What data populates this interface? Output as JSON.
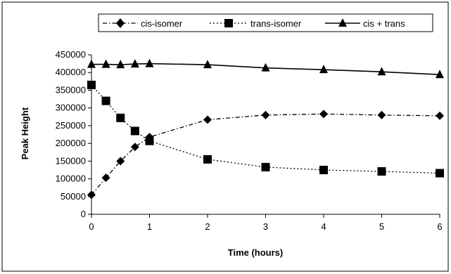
{
  "chart_data": {
    "type": "line",
    "title": "",
    "xlabel": "Time (hours)",
    "ylabel": "Peak Height",
    "xlim": [
      0,
      6
    ],
    "ylim": [
      0,
      450000
    ],
    "x_ticks": [
      0,
      1,
      2,
      3,
      4,
      5,
      6
    ],
    "y_ticks": [
      0,
      50000,
      100000,
      150000,
      200000,
      250000,
      300000,
      350000,
      400000,
      450000
    ],
    "grid": false,
    "legend_position": "top",
    "series": [
      {
        "name": "cis-isomer",
        "marker": "diamond",
        "line_style": "dash-dot",
        "color": "#000000",
        "points": [
          [
            0,
            55000
          ],
          [
            0.25,
            103000
          ],
          [
            0.5,
            150000
          ],
          [
            0.75,
            190000
          ],
          [
            1,
            218000
          ],
          [
            2,
            267000
          ],
          [
            3,
            280000
          ],
          [
            4,
            283000
          ],
          [
            5,
            280000
          ],
          [
            6,
            278000
          ]
        ]
      },
      {
        "name": "trans-isomer",
        "marker": "square",
        "line_style": "dotted",
        "color": "#000000",
        "points": [
          [
            0,
            365000
          ],
          [
            0.25,
            320000
          ],
          [
            0.5,
            272000
          ],
          [
            0.75,
            235000
          ],
          [
            1,
            207000
          ],
          [
            2,
            155000
          ],
          [
            3,
            133000
          ],
          [
            4,
            125000
          ],
          [
            5,
            121000
          ],
          [
            6,
            116000
          ]
        ]
      },
      {
        "name": "cis + trans",
        "marker": "triangle",
        "line_style": "solid",
        "color": "#000000",
        "points": [
          [
            0,
            423000
          ],
          [
            0.25,
            423000
          ],
          [
            0.5,
            422000
          ],
          [
            0.75,
            424000
          ],
          [
            1,
            425000
          ],
          [
            2,
            422000
          ],
          [
            3,
            413000
          ],
          [
            4,
            408000
          ],
          [
            5,
            402000
          ],
          [
            6,
            394000
          ]
        ]
      }
    ]
  }
}
